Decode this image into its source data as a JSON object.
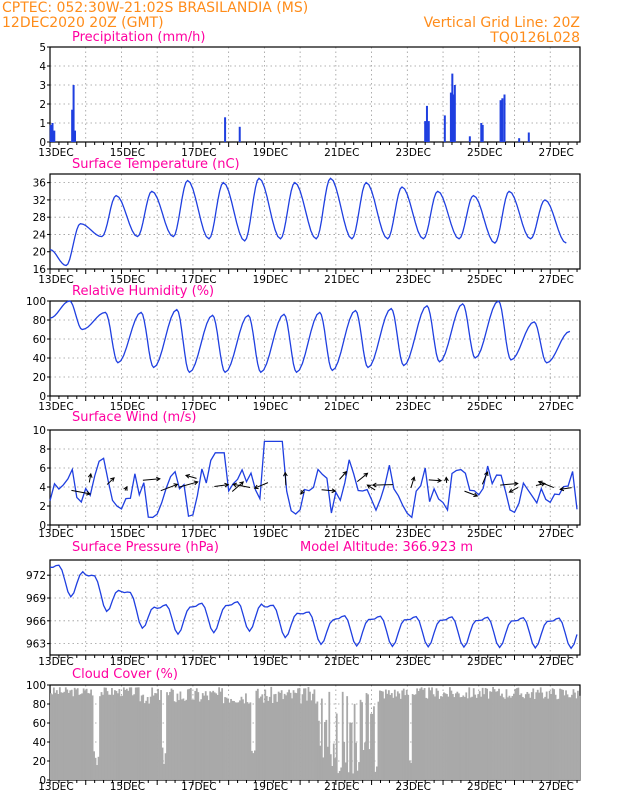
{
  "header": {
    "line1_left": "CPTEC:   052:30W-21:02S   BRASILANDIA (MS)",
    "line2_left": "12DEC2020 20Z (GMT)",
    "line1_right": "Vertical Grid Line: 20Z",
    "line2_right": "TQ0126L028"
  },
  "colors": {
    "header": "#ff8c1a",
    "title": "#ff00a0",
    "series": "#1f3fe0",
    "cloud": "#a9a9a9",
    "grid": "#999999"
  },
  "x_axis_labels": [
    "13DEC",
    "15DEC",
    "17DEC",
    "19DEC",
    "21DEC",
    "23DEC",
    "25DEC",
    "27DEC"
  ],
  "chart_data": [
    {
      "type": "bar",
      "title": "Precipitation (mm/h)",
      "unit": "mm/h",
      "ylim": [
        0,
        5
      ],
      "yticks": [
        0,
        1,
        2,
        3,
        4,
        5
      ],
      "x_unit": "days since 12DEC2020 20Z",
      "points": [
        [
          0.02,
          0.9
        ],
        [
          0.07,
          1.0
        ],
        [
          0.12,
          0.6
        ],
        [
          0.62,
          1.7
        ],
        [
          0.66,
          3.0
        ],
        [
          0.7,
          0.6
        ],
        [
          4.9,
          1.3
        ],
        [
          5.31,
          0.8
        ],
        [
          10.5,
          1.1
        ],
        [
          10.55,
          1.9
        ],
        [
          10.6,
          1.1
        ],
        [
          11.05,
          1.4
        ],
        [
          11.22,
          2.6
        ],
        [
          11.26,
          3.6
        ],
        [
          11.3,
          2.5
        ],
        [
          11.33,
          3.0
        ],
        [
          11.75,
          0.3
        ],
        [
          12.07,
          1.0
        ],
        [
          12.11,
          0.9
        ],
        [
          12.61,
          2.2
        ],
        [
          12.66,
          2.3
        ],
        [
          12.72,
          2.5
        ],
        [
          13.13,
          0.2
        ],
        [
          13.4,
          0.5
        ]
      ]
    },
    {
      "type": "line",
      "title": "Surface Temperature (nC)",
      "ylim": [
        16,
        38
      ],
      "yticks": [
        16,
        20,
        24,
        28,
        32,
        36
      ],
      "series_peaks": [
        26.5,
        33,
        34,
        36.5,
        36,
        37,
        36,
        37,
        36,
        35,
        34,
        33,
        34,
        32,
        34
      ],
      "series_troughs": [
        16.8,
        23.5,
        23.5,
        23.5,
        23,
        22.5,
        23,
        23,
        23,
        23,
        23,
        23,
        22,
        23,
        22
      ]
    },
    {
      "type": "line",
      "title": "Relative Humidity (%)",
      "ylim": [
        0,
        100
      ],
      "yticks": [
        0,
        20,
        40,
        60,
        80,
        100
      ],
      "series_peaks": [
        100,
        88,
        88,
        91,
        85,
        85,
        86,
        88,
        90,
        92,
        95,
        97,
        100,
        78,
        68,
        60
      ],
      "series_troughs": [
        70,
        35,
        30,
        25,
        25,
        25,
        25,
        27,
        30,
        32,
        36,
        40,
        38,
        35,
        33
      ]
    },
    {
      "type": "line",
      "title": "Surface Wind (m/s)",
      "ylim": [
        0,
        10
      ],
      "yticks": [
        0,
        2,
        4,
        6,
        8,
        10
      ]
    },
    {
      "type": "line",
      "title": "Surface Pressure (hPa)",
      "annotation": "Model Altitude: 366.923  m",
      "ylim": [
        961.5,
        974
      ],
      "yticks": [
        963,
        966,
        969,
        972
      ]
    },
    {
      "type": "area",
      "title": "Cloud Cover (%)",
      "ylim": [
        0,
        100
      ],
      "yticks": [
        0,
        20,
        40,
        60,
        80,
        100
      ]
    }
  ]
}
